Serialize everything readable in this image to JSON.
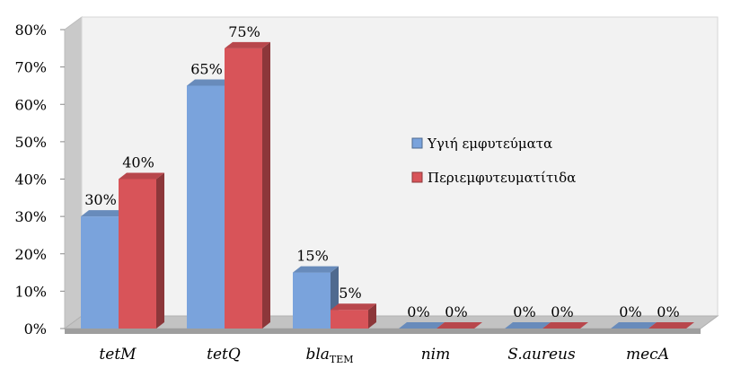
{
  "chart_data": {
    "type": "bar",
    "categories": [
      "tetM",
      "tetQ",
      "bla",
      "nim",
      "S.aureus",
      "mecA"
    ],
    "category_subscripts": [
      "",
      "",
      "TEM",
      "",
      "",
      ""
    ],
    "series": [
      {
        "name": "Υγιή εμφυτεύματα",
        "values": [
          30,
          65,
          15,
          0,
          0,
          0
        ],
        "labels": [
          "30%",
          "65%",
          "15%",
          "0%",
          "0%",
          "0%"
        ],
        "color": "#7aa3dc"
      },
      {
        "name": "Περιεμφυτευματίτιδα",
        "values": [
          40,
          75,
          5,
          0,
          0,
          0
        ],
        "labels": [
          "40%",
          "75%",
          "5%",
          "0%",
          "0%",
          "0%"
        ],
        "color": "#d85459"
      }
    ],
    "yticks": [
      "0%",
      "10%",
      "20%",
      "30%",
      "40%",
      "50%",
      "60%",
      "70%",
      "80%"
    ],
    "ylim": [
      0,
      80
    ],
    "grid": false,
    "legend_position": "right",
    "style": "3d"
  }
}
